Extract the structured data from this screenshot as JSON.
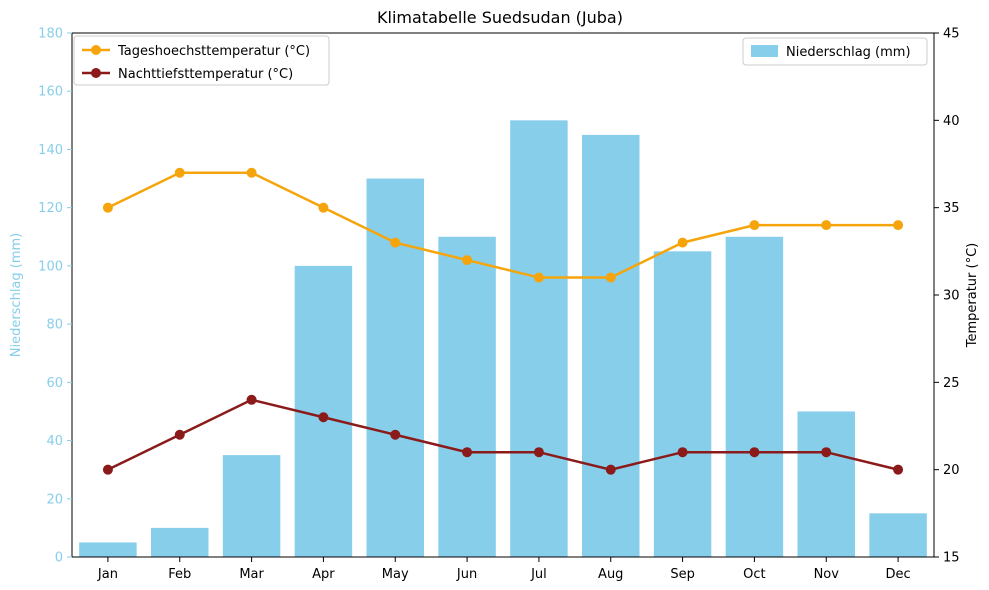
{
  "chart_data": {
    "type": "bar",
    "title": "Klimatabelle Suedsudan (Juba)",
    "categories": [
      "Jan",
      "Feb",
      "Mar",
      "Apr",
      "May",
      "Jun",
      "Jul",
      "Aug",
      "Sep",
      "Oct",
      "Nov",
      "Dec"
    ],
    "ylabel_left": "Niederschlag (mm)",
    "ylabel_right": "Temperatur (°C)",
    "ylim_left": [
      0,
      180
    ],
    "yticks_left": [
      0,
      20,
      40,
      60,
      80,
      100,
      120,
      140,
      160,
      180
    ],
    "ylim_right": [
      15,
      45
    ],
    "yticks_right": [
      15,
      20,
      25,
      30,
      35,
      40,
      45
    ],
    "grid": false,
    "legend_lines_position": "top-left",
    "legend_bars_position": "top-right",
    "bars": {
      "name": "Niederschlag (mm)",
      "axis": "left",
      "color": "#87ceeb",
      "values": [
        5,
        10,
        35,
        100,
        130,
        110,
        150,
        145,
        105,
        110,
        50,
        15
      ]
    },
    "lines": [
      {
        "name": "Tageshoechsttemperatur (°C)",
        "axis": "right",
        "color": "#f5a50b",
        "values": [
          35,
          37,
          37,
          35,
          33,
          32,
          31,
          31,
          33,
          34,
          34,
          34
        ]
      },
      {
        "name": "Nachttiefsttemperatur (°C)",
        "axis": "right",
        "color": "#8b1a1a",
        "values": [
          20,
          22,
          24,
          23,
          22,
          21,
          21,
          20,
          21,
          21,
          21,
          20
        ]
      }
    ]
  }
}
